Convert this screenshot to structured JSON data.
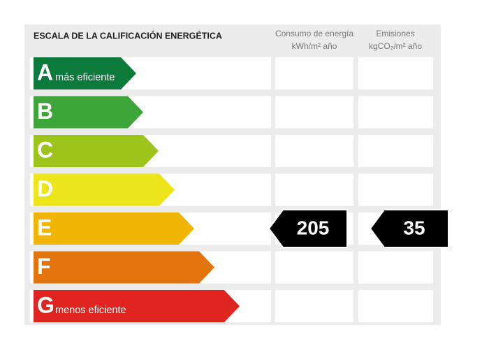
{
  "header": {
    "title": "ESCALA DE LA CALIFICACIÓN ENERGÉTICA",
    "columns": [
      [
        "Consumo de energía",
        "kWh/m² año"
      ],
      [
        "Emisiones",
        "kgCO₂/m² año"
      ]
    ]
  },
  "rows": [
    {
      "letter": "A",
      "label": "más eficiente",
      "color": "#0b7a3b"
    },
    {
      "letter": "B",
      "color": "#3da53a"
    },
    {
      "letter": "C",
      "color": "#9dc41b"
    },
    {
      "letter": "D",
      "color": "#ede51c"
    },
    {
      "letter": "E",
      "color": "#f0b505",
      "consumption": 205,
      "emissions": 35
    },
    {
      "letter": "F",
      "color": "#e2730d"
    },
    {
      "letter": "G",
      "label": "menos eficiente",
      "color": "#e0241f"
    }
  ]
}
